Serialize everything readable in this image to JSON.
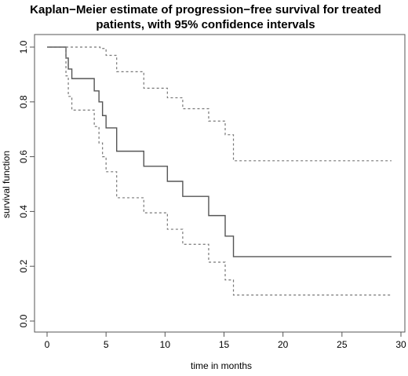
{
  "chart_data": {
    "type": "line",
    "title_lines": [
      "Kaplan−Meier estimate of progression−free survival for treated",
      "patients, with 95% confidence intervals"
    ],
    "xlabel": "time in months",
    "ylabel": "survival function",
    "xlim": [
      0,
      30
    ],
    "ylim": [
      0,
      1.0
    ],
    "x_ticks": [
      0,
      5,
      10,
      15,
      20,
      25,
      30
    ],
    "y_ticks": [
      0.0,
      0.2,
      0.4,
      0.6,
      0.8,
      1.0
    ],
    "x_tick_labels": [
      "0",
      "5",
      "10",
      "15",
      "20",
      "25",
      "30"
    ],
    "y_tick_labels": [
      "0.0",
      "0.2",
      "0.4",
      "0.6",
      "0.8",
      "1.0"
    ],
    "grid": false,
    "colors": {
      "estimate": "#555555",
      "ci": "#777777"
    },
    "series": [
      {
        "key": "estimate",
        "style": "solid",
        "step_x": [
          0,
          1.6,
          1.8,
          2.1,
          4.0,
          4.4,
          4.7,
          5.0,
          5.9,
          8.2,
          10.2,
          11.5,
          13.7,
          15.1,
          15.8,
          29.2
        ],
        "step_y": [
          1.0,
          0.96,
          0.92,
          0.885,
          0.84,
          0.8,
          0.75,
          0.705,
          0.62,
          0.565,
          0.51,
          0.455,
          0.385,
          0.31,
          0.235,
          0.235
        ]
      },
      {
        "key": "upper-ci",
        "style": "dashed",
        "step_x": [
          0,
          4.5,
          5.0,
          5.9,
          8.2,
          10.2,
          11.5,
          13.7,
          15.1,
          15.8,
          29.2
        ],
        "step_y": [
          1.0,
          0.995,
          0.97,
          0.91,
          0.85,
          0.815,
          0.775,
          0.73,
          0.68,
          0.585,
          0.585
        ]
      },
      {
        "key": "lower-ci",
        "style": "dashed",
        "step_x": [
          0,
          1.6,
          1.8,
          2.1,
          4.0,
          4.4,
          4.7,
          5.0,
          5.9,
          8.2,
          10.2,
          11.5,
          13.7,
          15.1,
          15.8,
          29.2
        ],
        "step_y": [
          1.0,
          0.895,
          0.82,
          0.77,
          0.71,
          0.65,
          0.6,
          0.545,
          0.45,
          0.395,
          0.335,
          0.28,
          0.215,
          0.15,
          0.095,
          0.095
        ]
      }
    ]
  }
}
